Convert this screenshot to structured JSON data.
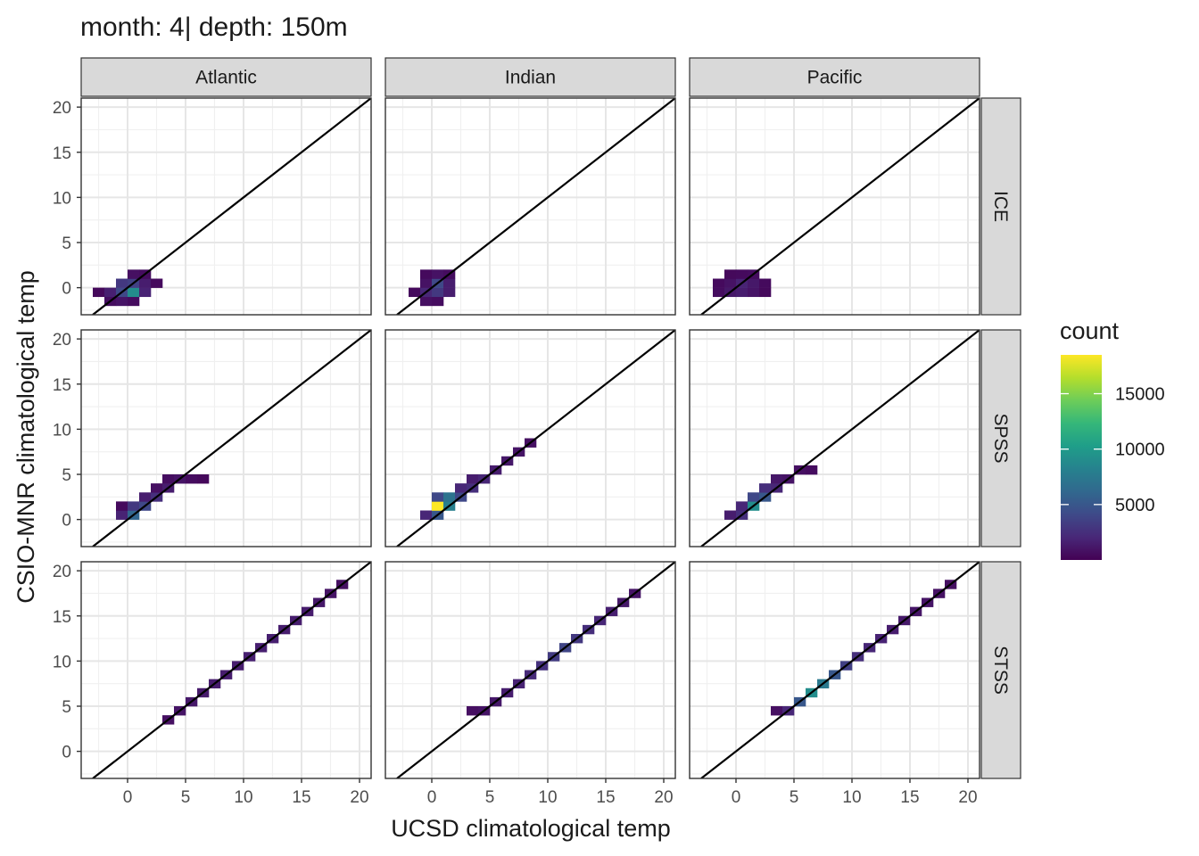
{
  "chart_data": {
    "type": "heatmap",
    "title": "month: 4| depth: 150m",
    "xlabel": "UCSD climatological temp",
    "ylabel": "CSIO-MNR climatological temp",
    "xlim": [
      -4,
      21
    ],
    "ylim": [
      -3,
      21
    ],
    "x_ticks": [
      0,
      5,
      10,
      15,
      20
    ],
    "y_ticks": [
      0,
      5,
      10,
      15,
      20
    ],
    "grid": true,
    "reference_line": "y = x",
    "columns": [
      "Atlantic",
      "Indian",
      "Pacific"
    ],
    "rows": [
      "ICE",
      "SPSS",
      "STSS"
    ],
    "legend": {
      "title": "count",
      "position": "right",
      "min": 0,
      "max": 18500,
      "ticks": [
        5000,
        10000,
        15000
      ],
      "colors": [
        "#440154",
        "#482878",
        "#3e4a89",
        "#31688e",
        "#26828e",
        "#1f9e89",
        "#35b779",
        "#6dcd59",
        "#b4de2c",
        "#fde725"
      ]
    },
    "panels": [
      {
        "column": "Atlantic",
        "row": "ICE",
        "tiles": [
          [
            -2.5,
            -0.5,
            400
          ],
          [
            -1.5,
            -1.5,
            700
          ],
          [
            -1.5,
            -0.5,
            1600
          ],
          [
            -0.5,
            -1.5,
            1000
          ],
          [
            -0.5,
            -0.5,
            4000
          ],
          [
            -0.5,
            0.5,
            3000
          ],
          [
            0.5,
            -1.5,
            600
          ],
          [
            0.5,
            -0.5,
            9000
          ],
          [
            0.5,
            0.5,
            3500
          ],
          [
            0.5,
            1.5,
            800
          ],
          [
            1.5,
            -0.5,
            1800
          ],
          [
            1.5,
            0.5,
            1500
          ],
          [
            1.5,
            1.5,
            600
          ],
          [
            2.5,
            0.5,
            500
          ]
        ]
      },
      {
        "column": "Indian",
        "row": "ICE",
        "tiles": [
          [
            -1.5,
            -0.5,
            500
          ],
          [
            -0.5,
            -1.5,
            800
          ],
          [
            -0.5,
            -0.5,
            2000
          ],
          [
            -0.5,
            0.5,
            900
          ],
          [
            -0.5,
            1.5,
            500
          ],
          [
            0.5,
            -1.5,
            600
          ],
          [
            0.5,
            -0.5,
            3000
          ],
          [
            0.5,
            0.5,
            4000
          ],
          [
            0.5,
            1.5,
            900
          ],
          [
            1.5,
            -0.5,
            1500
          ],
          [
            1.5,
            0.5,
            1500
          ],
          [
            1.5,
            1.5,
            600
          ]
        ]
      },
      {
        "column": "Pacific",
        "row": "ICE",
        "tiles": [
          [
            -1.5,
            -0.5,
            600
          ],
          [
            -1.5,
            0.5,
            500
          ],
          [
            -0.5,
            -0.5,
            1200
          ],
          [
            -0.5,
            0.5,
            900
          ],
          [
            -0.5,
            1.5,
            400
          ],
          [
            0.5,
            -0.5,
            1500
          ],
          [
            0.5,
            0.5,
            1800
          ],
          [
            0.5,
            1.5,
            500
          ],
          [
            1.5,
            -0.5,
            1000
          ],
          [
            1.5,
            0.5,
            1200
          ],
          [
            1.5,
            1.5,
            600
          ],
          [
            2.5,
            -0.5,
            400
          ],
          [
            2.5,
            0.5,
            500
          ]
        ]
      },
      {
        "column": "Atlantic",
        "row": "SPSS",
        "tiles": [
          [
            -0.5,
            0.5,
            1800
          ],
          [
            -0.5,
            1.5,
            500
          ],
          [
            0.5,
            0.5,
            6000
          ],
          [
            0.5,
            1.5,
            3000
          ],
          [
            1.5,
            1.5,
            4000
          ],
          [
            1.5,
            2.5,
            1500
          ],
          [
            2.5,
            2.5,
            2500
          ],
          [
            2.5,
            3.5,
            800
          ],
          [
            3.5,
            3.5,
            1500
          ],
          [
            3.5,
            4.5,
            700
          ],
          [
            4.5,
            4.5,
            1000
          ],
          [
            5.5,
            4.5,
            600
          ],
          [
            6.5,
            4.5,
            400
          ]
        ]
      },
      {
        "column": "Indian",
        "row": "SPSS",
        "tiles": [
          [
            -0.5,
            0.5,
            2000
          ],
          [
            0.5,
            0.5,
            5000
          ],
          [
            0.5,
            1.5,
            18500
          ],
          [
            0.5,
            2.5,
            4000
          ],
          [
            1.5,
            1.5,
            8000
          ],
          [
            1.5,
            2.5,
            7000
          ],
          [
            2.5,
            2.5,
            4000
          ],
          [
            2.5,
            3.5,
            2000
          ],
          [
            3.5,
            3.5,
            2500
          ],
          [
            3.5,
            4.5,
            1500
          ],
          [
            4.5,
            4.5,
            2000
          ],
          [
            5.5,
            5.5,
            1500
          ],
          [
            6.5,
            6.5,
            1200
          ],
          [
            7.5,
            7.5,
            1000
          ],
          [
            8.5,
            8.5,
            800
          ]
        ]
      },
      {
        "column": "Pacific",
        "row": "SPSS",
        "tiles": [
          [
            -0.5,
            0.5,
            1500
          ],
          [
            0.5,
            0.5,
            2500
          ],
          [
            0.5,
            1.5,
            2000
          ],
          [
            1.5,
            1.5,
            9000
          ],
          [
            1.5,
            2.5,
            4000
          ],
          [
            2.5,
            2.5,
            5000
          ],
          [
            2.5,
            3.5,
            2500
          ],
          [
            3.5,
            3.5,
            2000
          ],
          [
            3.5,
            4.5,
            1200
          ],
          [
            4.5,
            4.5,
            1000
          ],
          [
            5.5,
            5.5,
            800
          ],
          [
            6.5,
            5.5,
            600
          ]
        ]
      },
      {
        "column": "Atlantic",
        "row": "STSS",
        "tiles": [
          [
            3.5,
            3.5,
            800
          ],
          [
            4.5,
            4.5,
            1000
          ],
          [
            5.5,
            5.5,
            1200
          ],
          [
            6.5,
            6.5,
            1300
          ],
          [
            7.5,
            7.5,
            1400
          ],
          [
            8.5,
            8.5,
            1500
          ],
          [
            9.5,
            9.5,
            1500
          ],
          [
            10.5,
            10.5,
            1600
          ],
          [
            11.5,
            11.5,
            1600
          ],
          [
            12.5,
            12.5,
            1600
          ],
          [
            13.5,
            13.5,
            1500
          ],
          [
            14.5,
            14.5,
            1500
          ],
          [
            15.5,
            15.5,
            1400
          ],
          [
            16.5,
            16.5,
            1200
          ],
          [
            17.5,
            17.5,
            1000
          ],
          [
            18.5,
            18.5,
            800
          ]
        ]
      },
      {
        "column": "Indian",
        "row": "STSS",
        "tiles": [
          [
            3.5,
            4.5,
            800
          ],
          [
            4.5,
            4.5,
            1000
          ],
          [
            5.5,
            5.5,
            1200
          ],
          [
            6.5,
            6.5,
            1500
          ],
          [
            7.5,
            7.5,
            1800
          ],
          [
            8.5,
            8.5,
            2200
          ],
          [
            9.5,
            9.5,
            2600
          ],
          [
            10.5,
            10.5,
            3200
          ],
          [
            11.5,
            11.5,
            3800
          ],
          [
            12.5,
            12.5,
            3000
          ],
          [
            13.5,
            13.5,
            2400
          ],
          [
            14.5,
            14.5,
            2000
          ],
          [
            15.5,
            15.5,
            1600
          ],
          [
            16.5,
            16.5,
            1200
          ],
          [
            17.5,
            17.5,
            1000
          ]
        ]
      },
      {
        "column": "Pacific",
        "row": "STSS",
        "tiles": [
          [
            3.5,
            4.5,
            800
          ],
          [
            4.5,
            4.5,
            2000
          ],
          [
            5.5,
            5.5,
            5000
          ],
          [
            6.5,
            6.5,
            9000
          ],
          [
            7.5,
            7.5,
            7500
          ],
          [
            8.5,
            8.5,
            5000
          ],
          [
            9.5,
            9.5,
            3500
          ],
          [
            10.5,
            10.5,
            2500
          ],
          [
            11.5,
            11.5,
            2000
          ],
          [
            12.5,
            12.5,
            1800
          ],
          [
            13.5,
            13.5,
            1500
          ],
          [
            14.5,
            14.5,
            1300
          ],
          [
            15.5,
            15.5,
            1100
          ],
          [
            16.5,
            16.5,
            1000
          ],
          [
            17.5,
            17.5,
            900
          ],
          [
            18.5,
            18.5,
            800
          ]
        ]
      }
    ]
  }
}
